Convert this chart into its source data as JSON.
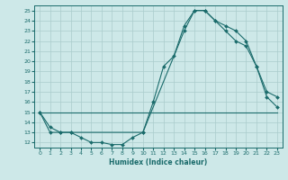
{
  "xlabel": "Humidex (Indice chaleur)",
  "bg_color": "#cde8e8",
  "grid_color": "#aacccc",
  "line_color": "#1a6b6b",
  "xlim": [
    -0.5,
    23.5
  ],
  "ylim": [
    11.5,
    25.5
  ],
  "xticks": [
    0,
    1,
    2,
    3,
    4,
    5,
    6,
    7,
    8,
    9,
    10,
    11,
    12,
    13,
    14,
    15,
    16,
    17,
    18,
    19,
    20,
    21,
    22,
    23
  ],
  "yticks": [
    12,
    13,
    14,
    15,
    16,
    17,
    18,
    19,
    20,
    21,
    22,
    23,
    24,
    25
  ],
  "line1_x": [
    0,
    1,
    2,
    3,
    4,
    5,
    6,
    7,
    8,
    9,
    10,
    11,
    12,
    13,
    14,
    15,
    16,
    17,
    18,
    19,
    20,
    21,
    22,
    23
  ],
  "line1_y": [
    15,
    13,
    13,
    13,
    12.5,
    12,
    12,
    11.8,
    11.8,
    12.5,
    13,
    16,
    19.5,
    20.5,
    23.5,
    25,
    25,
    24,
    23,
    22,
    21.5,
    19.5,
    16.5,
    15.5
  ],
  "line2_x": [
    0,
    23
  ],
  "line2_y": [
    15,
    15
  ],
  "line3_x": [
    0,
    1,
    2,
    3,
    10,
    14,
    15,
    16,
    17,
    18,
    19,
    20,
    21,
    22,
    23
  ],
  "line3_y": [
    15,
    13.5,
    13,
    13,
    13,
    23,
    25,
    25,
    24,
    23.5,
    23,
    22,
    19.5,
    17,
    16.5
  ]
}
